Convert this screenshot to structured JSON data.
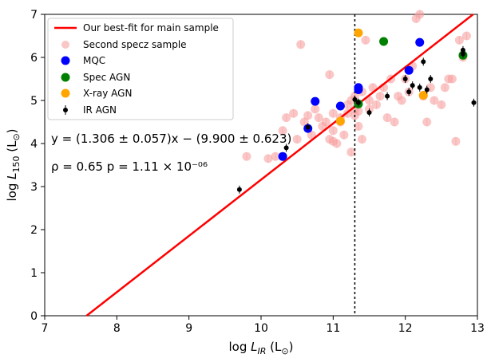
{
  "chart_data": {
    "type": "scatter",
    "xlabel": "log L_IR (L⊙)",
    "ylabel": "log L_150 (L⊙)",
    "xlim": [
      7,
      13
    ],
    "ylim": [
      0,
      7
    ],
    "x_ticks": [
      "7",
      "8",
      "9",
      "10",
      "11",
      "12",
      "13"
    ],
    "y_ticks": [
      "0",
      "1",
      "2",
      "3",
      "4",
      "5",
      "6",
      "7"
    ],
    "vline_x": 11.3,
    "fit": {
      "label": "Our best-fit for main sample",
      "slope": 1.306,
      "intercept": -9.9,
      "color": "#ff0000"
    },
    "annotations": [
      "y = (1.306 ± 0.057)x − (9.900 ± 0.623)",
      "ρ = 0.65   p = 1.11 × 10⁻⁰⁶"
    ],
    "series": [
      {
        "name": "Second specz sample",
        "color": "#f7a0a0",
        "points": [
          [
            9.8,
            3.7
          ],
          [
            10.1,
            3.65
          ],
          [
            10.2,
            3.7
          ],
          [
            10.3,
            4.3
          ],
          [
            10.35,
            4.6
          ],
          [
            10.45,
            4.7
          ],
          [
            10.5,
            4.1
          ],
          [
            10.55,
            6.3
          ],
          [
            10.6,
            4.5
          ],
          [
            10.65,
            4.65
          ],
          [
            10.7,
            4.2
          ],
          [
            10.75,
            4.8
          ],
          [
            10.8,
            4.6
          ],
          [
            10.85,
            4.4
          ],
          [
            10.9,
            4.5
          ],
          [
            10.95,
            5.6
          ],
          [
            11.0,
            4.3
          ],
          [
            11.0,
            4.7
          ],
          [
            11.05,
            4.0
          ],
          [
            11.1,
            4.5
          ],
          [
            11.1,
            4.6
          ],
          [
            11.15,
            4.2
          ],
          [
            11.2,
            4.7
          ],
          [
            11.2,
            4.9
          ],
          [
            11.25,
            3.8
          ],
          [
            11.25,
            5.0
          ],
          [
            11.3,
            5.1
          ],
          [
            11.3,
            4.8
          ],
          [
            11.35,
            4.4
          ],
          [
            11.4,
            4.1
          ],
          [
            11.4,
            5.2
          ],
          [
            11.45,
            6.4
          ],
          [
            11.5,
            4.8
          ],
          [
            11.5,
            5.0
          ],
          [
            11.55,
            5.3
          ],
          [
            11.6,
            4.9
          ],
          [
            11.65,
            5.1
          ],
          [
            11.7,
            5.3
          ],
          [
            11.75,
            4.6
          ],
          [
            11.8,
            5.5
          ],
          [
            11.85,
            4.5
          ],
          [
            11.9,
            5.1
          ],
          [
            11.95,
            5.0
          ],
          [
            12.0,
            5.5
          ],
          [
            12.05,
            5.2
          ],
          [
            12.1,
            5.8
          ],
          [
            12.15,
            6.9
          ],
          [
            12.2,
            7.0
          ],
          [
            12.25,
            5.1
          ],
          [
            12.3,
            4.5
          ],
          [
            12.35,
            5.3
          ],
          [
            12.4,
            5.0
          ],
          [
            12.5,
            4.9
          ],
          [
            12.55,
            5.3
          ],
          [
            12.6,
            5.5
          ],
          [
            12.65,
            5.5
          ],
          [
            12.7,
            4.05
          ],
          [
            12.75,
            6.4
          ],
          [
            12.8,
            6.0
          ],
          [
            12.85,
            6.5
          ],
          [
            11.0,
            4.05
          ],
          [
            10.95,
            4.1
          ],
          [
            11.35,
            4.75
          ],
          [
            11.3,
            4.65
          ]
        ]
      },
      {
        "name": "MQC",
        "color": "#0000ff",
        "points": [
          [
            10.3,
            3.7
          ],
          [
            10.65,
            4.35
          ],
          [
            10.75,
            4.98
          ],
          [
            11.1,
            4.87
          ],
          [
            11.35,
            5.25
          ],
          [
            11.35,
            5.3
          ],
          [
            12.05,
            5.7
          ],
          [
            12.2,
            6.35
          ]
        ]
      },
      {
        "name": "Spec AGN",
        "color": "#008000",
        "points": [
          [
            11.35,
            4.92
          ],
          [
            11.7,
            6.37
          ],
          [
            12.8,
            6.05
          ]
        ]
      },
      {
        "name": "X-ray AGN",
        "color": "#ffa500",
        "points": [
          [
            11.1,
            4.52
          ],
          [
            11.35,
            6.57
          ],
          [
            12.25,
            5.12
          ]
        ]
      },
      {
        "name": "IR AGN",
        "color": "#000000",
        "points": [
          [
            9.7,
            2.93
          ],
          [
            10.35,
            3.9
          ],
          [
            10.65,
            4.38
          ],
          [
            11.3,
            5.02
          ],
          [
            11.35,
            4.95
          ],
          [
            11.5,
            4.72
          ],
          [
            11.75,
            5.1
          ],
          [
            12.0,
            5.5
          ],
          [
            12.05,
            5.2
          ],
          [
            12.1,
            5.35
          ],
          [
            12.2,
            5.3
          ],
          [
            12.25,
            5.9
          ],
          [
            12.3,
            5.25
          ],
          [
            12.35,
            5.5
          ],
          [
            12.8,
            6.17
          ],
          [
            12.8,
            6.08
          ],
          [
            12.95,
            4.95
          ]
        ]
      }
    ],
    "legend_position": "top-left"
  }
}
